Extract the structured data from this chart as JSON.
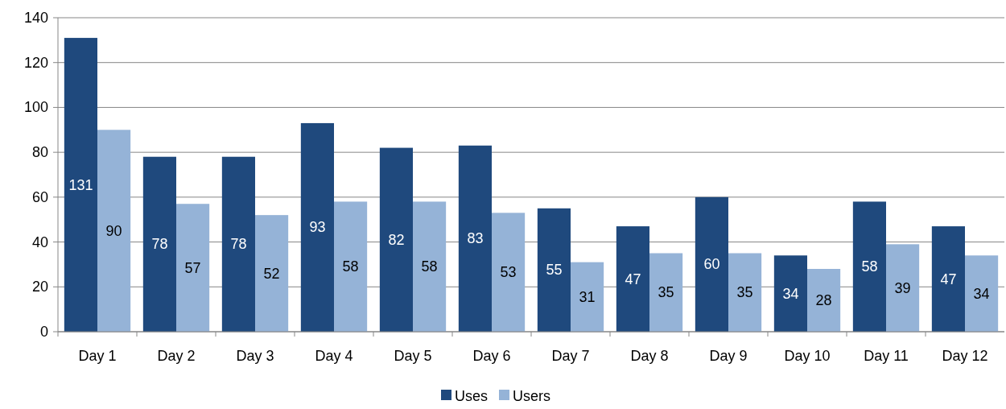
{
  "chart_data": {
    "type": "bar",
    "categories": [
      "Day 1",
      "Day 2",
      "Day 3",
      "Day 4",
      "Day 5",
      "Day 6",
      "Day 7",
      "Day 8",
      "Day 9",
      "Day 10",
      "Day 11",
      "Day 12"
    ],
    "series": [
      {
        "name": "Uses",
        "color": "#1f497d",
        "values": [
          131,
          78,
          78,
          93,
          82,
          83,
          55,
          47,
          60,
          34,
          58,
          47
        ]
      },
      {
        "name": "Users",
        "color": "#95b3d7",
        "values": [
          90,
          57,
          52,
          58,
          58,
          53,
          31,
          35,
          35,
          28,
          39,
          34
        ]
      }
    ],
    "ylim": [
      0,
      140
    ],
    "yticks": [
      0,
      20,
      40,
      60,
      80,
      100,
      120,
      140
    ],
    "grid": "y",
    "legend": "bottom",
    "data_labels": true
  }
}
